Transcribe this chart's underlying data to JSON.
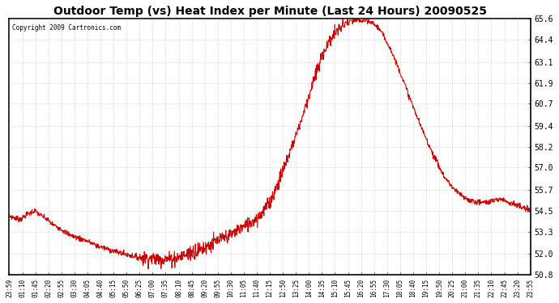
{
  "title": "Outdoor Temp (vs) Heat Index per Minute (Last 24 Hours) 20090525",
  "copyright": "Copyright 2009 Cartronics.com",
  "line_color": "#cc0000",
  "background_color": "#ffffff",
  "grid_color": "#aaaaaa",
  "ylim": [
    50.8,
    65.6
  ],
  "yticks": [
    50.8,
    52.0,
    53.3,
    54.5,
    55.7,
    57.0,
    58.2,
    59.4,
    60.7,
    61.9,
    63.1,
    64.4,
    65.6
  ],
  "xtick_labels": [
    "23:59",
    "01:10",
    "01:45",
    "02:20",
    "02:55",
    "03:30",
    "04:05",
    "04:40",
    "05:15",
    "05:50",
    "06:25",
    "07:00",
    "07:35",
    "08:10",
    "08:45",
    "09:20",
    "09:55",
    "10:30",
    "11:05",
    "11:40",
    "12:15",
    "12:50",
    "13:25",
    "14:00",
    "14:35",
    "15:10",
    "15:45",
    "16:20",
    "16:55",
    "17:30",
    "18:05",
    "18:40",
    "19:15",
    "19:50",
    "20:25",
    "21:00",
    "21:35",
    "22:10",
    "22:45",
    "23:20",
    "23:55"
  ],
  "line_width": 0.8,
  "figsize": [
    6.9,
    3.75
  ],
  "dpi": 100
}
